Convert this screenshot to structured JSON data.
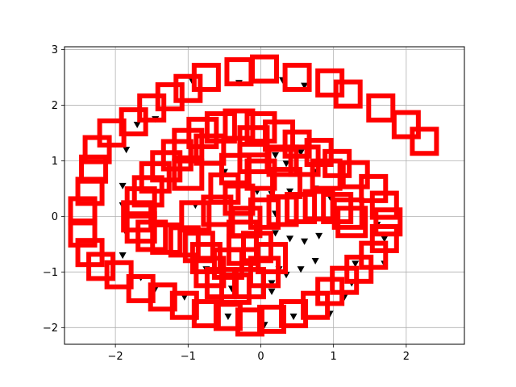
{
  "chart_data": {
    "type": "scatter",
    "title": "",
    "xlabel": "",
    "ylabel": "",
    "xlim": [
      -2.7,
      2.8
    ],
    "ylim": [
      -2.3,
      3.05
    ],
    "x_ticks": [
      -2,
      -1,
      0,
      1,
      2
    ],
    "y_ticks": [
      -2,
      -1,
      0,
      1,
      2,
      3
    ],
    "x_tick_labels": [
      "−2",
      "−1",
      "0",
      "1",
      "2"
    ],
    "y_tick_labels": [
      "−2",
      "−1",
      "0",
      "1",
      "2",
      "3"
    ],
    "grid": true,
    "legend": null,
    "series": [
      {
        "marker": "triangle-down",
        "color": "#000000",
        "points": [
          [
            -0.95,
            2.45
          ],
          [
            -0.3,
            2.4
          ],
          [
            0.3,
            2.45
          ],
          [
            0.6,
            2.35
          ],
          [
            -1.7,
            1.65
          ],
          [
            -1.45,
            1.75
          ],
          [
            -1.85,
            1.2
          ],
          [
            -1.9,
            0.55
          ],
          [
            -1.9,
            0.2
          ],
          [
            -1.85,
            -0.3
          ],
          [
            -1.9,
            -0.7
          ],
          [
            -1.65,
            -1.1
          ],
          [
            -1.45,
            -1.3
          ],
          [
            -1.05,
            -1.45
          ],
          [
            -0.9,
            -1.85
          ],
          [
            -0.45,
            -1.8
          ],
          [
            0.05,
            -1.95
          ],
          [
            0.45,
            -1.8
          ],
          [
            0.95,
            -1.75
          ],
          [
            1.15,
            -1.45
          ],
          [
            1.25,
            -1.2
          ],
          [
            1.3,
            -0.85
          ],
          [
            1.7,
            -0.85
          ],
          [
            1.7,
            -0.4
          ],
          [
            1.6,
            -0.15
          ],
          [
            0.2,
            1.1
          ],
          [
            0.35,
            0.95
          ],
          [
            0.55,
            1.15
          ],
          [
            0.75,
            0.8
          ],
          [
            0.4,
            0.45
          ],
          [
            0.75,
            0.5
          ],
          [
            0.95,
            0.35
          ],
          [
            0.2,
            -0.3
          ],
          [
            0.4,
            -0.4
          ],
          [
            0.6,
            -0.45
          ],
          [
            0.8,
            -0.35
          ],
          [
            0.75,
            -0.8
          ],
          [
            0.55,
            -0.95
          ],
          [
            0.25,
            -0.95
          ],
          [
            0.15,
            -1.2
          ],
          [
            0.35,
            -1.05
          ],
          [
            0.2,
            0.05
          ],
          [
            -0.05,
            0.45
          ],
          [
            0.15,
            0.4
          ],
          [
            -0.5,
            0.8
          ],
          [
            -0.9,
            0.2
          ],
          [
            -1.0,
            -0.25
          ],
          [
            -0.75,
            -0.95
          ],
          [
            -0.4,
            -1.3
          ],
          [
            0.15,
            -1.35
          ]
        ]
      },
      {
        "marker": "square-open",
        "color": "#ff0000",
        "spiral_outer": [
          [
            2.25,
            1.35
          ],
          [
            2.0,
            1.65
          ],
          [
            1.65,
            1.95
          ],
          [
            1.2,
            2.2
          ],
          [
            0.95,
            2.4
          ],
          [
            0.5,
            2.5
          ],
          [
            0.05,
            2.65
          ],
          [
            -0.3,
            2.6
          ],
          [
            -0.75,
            2.5
          ],
          [
            -1.0,
            2.3
          ],
          [
            -1.25,
            2.15
          ],
          [
            -1.5,
            1.95
          ],
          [
            -1.75,
            1.7
          ],
          [
            -2.05,
            1.5
          ],
          [
            -2.25,
            1.2
          ],
          [
            -2.3,
            0.85
          ],
          [
            -2.35,
            0.45
          ],
          [
            -2.45,
            0.1
          ],
          [
            -2.45,
            -0.3
          ],
          [
            -2.35,
            -0.65
          ],
          [
            -2.2,
            -0.9
          ],
          [
            -1.95,
            -1.05
          ],
          [
            -1.65,
            -1.3
          ],
          [
            -1.35,
            -1.45
          ],
          [
            -1.05,
            -1.6
          ],
          [
            -0.75,
            -1.75
          ],
          [
            -0.45,
            -1.8
          ],
          [
            -0.15,
            -1.9
          ],
          [
            0.15,
            -1.85
          ],
          [
            0.45,
            -1.75
          ],
          [
            0.75,
            -1.6
          ],
          [
            0.95,
            -1.35
          ],
          [
            1.15,
            -1.15
          ],
          [
            1.35,
            -0.95
          ],
          [
            1.55,
            -0.7
          ],
          [
            1.7,
            -0.4
          ],
          [
            1.75,
            -0.1
          ],
          [
            1.7,
            0.2
          ],
          [
            1.55,
            0.5
          ],
          [
            1.3,
            0.75
          ],
          [
            1.05,
            0.95
          ],
          [
            0.8,
            1.15
          ],
          [
            0.5,
            1.3
          ]
        ],
        "spiral_inner": [
          [
            0.25,
            1.45
          ],
          [
            0.0,
            1.6
          ],
          [
            -0.3,
            1.65
          ],
          [
            -0.55,
            1.6
          ],
          [
            -0.8,
            1.5
          ],
          [
            -1.0,
            1.3
          ],
          [
            -1.15,
            1.1
          ],
          [
            -1.3,
            0.9
          ],
          [
            -1.45,
            0.7
          ],
          [
            -1.55,
            0.45
          ],
          [
            -1.65,
            0.25
          ],
          [
            -1.7,
            0.0
          ],
          [
            -1.65,
            -0.2
          ],
          [
            -1.5,
            -0.35
          ],
          [
            -1.3,
            -0.4
          ],
          [
            -1.05,
            -0.45
          ],
          [
            -0.85,
            -0.55
          ],
          [
            -0.75,
            -0.75
          ],
          [
            -0.7,
            -1.0
          ],
          [
            -0.55,
            -1.2
          ],
          [
            -0.35,
            -1.3
          ],
          [
            -0.15,
            -1.2
          ],
          [
            0.05,
            -1.0
          ],
          [
            0.15,
            -0.75
          ],
          [
            -0.05,
            -0.55
          ],
          [
            -0.25,
            -0.35
          ],
          [
            -0.2,
            -0.1
          ],
          [
            0.05,
            0.05
          ],
          [
            0.3,
            0.1
          ],
          [
            0.55,
            0.15
          ],
          [
            0.8,
            0.2
          ],
          [
            1.05,
            0.15
          ],
          [
            1.2,
            0.05
          ],
          [
            1.25,
            -0.1
          ],
          [
            -0.3,
            0.3
          ],
          [
            -0.5,
            0.5
          ],
          [
            -0.35,
            0.85
          ],
          [
            -0.1,
            1.05
          ],
          [
            0.0,
            0.75
          ],
          [
            -0.6,
            0.1
          ],
          [
            -0.9,
            0.0
          ],
          [
            -0.45,
            -0.85
          ],
          [
            -0.25,
            -0.6
          ],
          [
            0.3,
            1.0
          ],
          [
            0.6,
            1.0
          ],
          [
            0.9,
            0.75
          ],
          [
            -1.0,
            0.75
          ],
          [
            -0.7,
            1.2
          ],
          [
            -0.1,
            1.35
          ],
          [
            0.35,
            0.6
          ]
        ]
      }
    ]
  }
}
